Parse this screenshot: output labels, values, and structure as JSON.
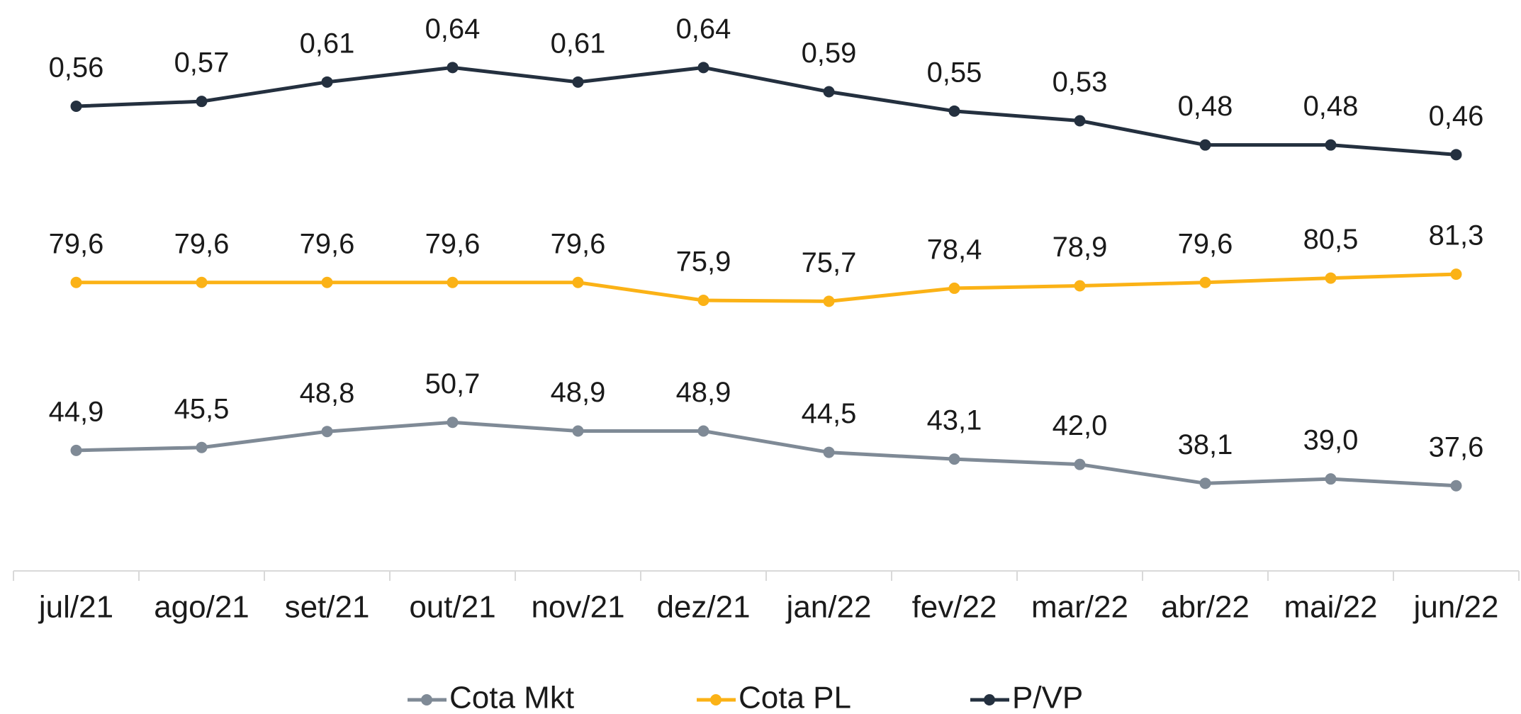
{
  "chart_data": {
    "type": "line",
    "categories": [
      "jul/21",
      "ago/21",
      "set/21",
      "out/21",
      "nov/21",
      "dez/21",
      "jan/22",
      "fev/22",
      "mar/22",
      "abr/22",
      "mai/22",
      "jun/22"
    ],
    "ylim": [
      20,
      140
    ],
    "y2lim": [
      -0.4,
      0.8
    ],
    "legend": "bottom",
    "series": [
      {
        "name": "Cota Mkt",
        "color": "#7f8a96",
        "values": [
          44.9,
          45.5,
          48.8,
          50.7,
          48.9,
          48.9,
          44.5,
          43.1,
          42.0,
          38.1,
          39.0,
          37.6
        ],
        "value_labels": [
          "44,9",
          "45,5",
          "48,8",
          "50,7",
          "48,9",
          "48,9",
          "44,5",
          "43,1",
          "42,0",
          "38,1",
          "39,0",
          "37,6"
        ]
      },
      {
        "name": "Cota PL",
        "color": "#fbb216",
        "values": [
          79.6,
          79.6,
          79.6,
          79.6,
          79.6,
          75.9,
          75.7,
          78.4,
          78.9,
          79.6,
          80.5,
          81.3
        ],
        "value_labels": [
          "79,6",
          "79,6",
          "79,6",
          "79,6",
          "79,6",
          "75,9",
          "75,7",
          "78,4",
          "78,9",
          "79,6",
          "80,5",
          "81,3"
        ]
      },
      {
        "name": "P/VP",
        "color": "#24303f",
        "axis": "y2",
        "values": [
          0.56,
          0.57,
          0.61,
          0.64,
          0.61,
          0.64,
          0.59,
          0.55,
          0.53,
          0.48,
          0.48,
          0.46
        ],
        "value_labels": [
          "0,56",
          "0,57",
          "0,61",
          "0,64",
          "0,61",
          "0,64",
          "0,59",
          "0,55",
          "0,53",
          "0,48",
          "0,48",
          "0,46"
        ]
      }
    ]
  }
}
